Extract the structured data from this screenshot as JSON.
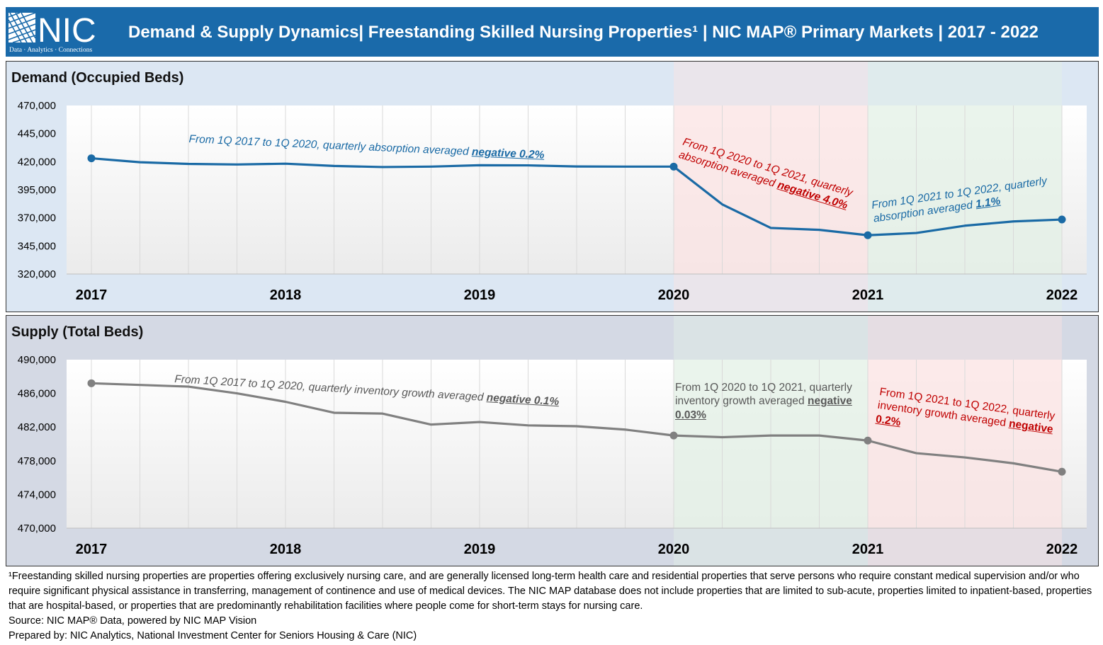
{
  "header": {
    "logo_text": "NIC",
    "logo_tagline": "Data · Analytics · Connections",
    "title": "Demand & Supply Dynamics| Freestanding Skilled Nursing Properties¹ | NIC MAP® Primary Markets | 2017 - 2022"
  },
  "colors": {
    "header_bg": "#1a6aaa",
    "demand_line": "#1a6aa5",
    "supply_line": "#808080",
    "negative_zone": "#fbe3e3",
    "positive_zone": "#e3f0e6"
  },
  "chart_data": [
    {
      "type": "line",
      "title": "Demand (Occupied Beds)",
      "categories": [
        "2017",
        "",
        "",
        "",
        "2018",
        "",
        "",
        "",
        "2019",
        "",
        "",
        "",
        "2020",
        "",
        "",
        "",
        "2021",
        "",
        "",
        "",
        "2022"
      ],
      "year_labels": [
        "2017",
        "2018",
        "2019",
        "2020",
        "2021",
        "2022"
      ],
      "series": [
        {
          "values": [
            423000,
            419500,
            418000,
            417500,
            418200,
            416200,
            415200,
            415600,
            416800,
            416700,
            415700,
            415600,
            415600,
            382000,
            361000,
            359300,
            354500,
            356500,
            363000,
            366800,
            368500
          ]
        }
      ],
      "ylim": [
        320000,
        470000
      ],
      "yticks": [
        "320,000",
        "345,000",
        "370,000",
        "395,000",
        "420,000",
        "445,000",
        "470,000"
      ],
      "marker_indices": [
        0,
        12,
        16,
        20
      ],
      "shaded_regions": [
        {
          "from": 12,
          "to": 16,
          "tone": "negative"
        },
        {
          "from": 16,
          "to": 20,
          "tone": "positive"
        }
      ],
      "annotations": {
        "period1": {
          "text": "From 1Q 2017 to 1Q 2020, quarterly absorption averaged",
          "value": "negative 0.2%"
        },
        "period2": {
          "line1": "From 1Q 2020 to 1Q 2021, quarterly",
          "line2": "absorption averaged",
          "value": "negative 4.0%"
        },
        "period3": {
          "line1": "From 1Q 2021 to 1Q 2022, quarterly",
          "line2": "absorption averaged",
          "value": "1.1%"
        }
      }
    },
    {
      "type": "line",
      "title": "Supply (Total Beds)",
      "categories": [
        "2017",
        "",
        "",
        "",
        "2018",
        "",
        "",
        "",
        "2019",
        "",
        "",
        "",
        "2020",
        "",
        "",
        "",
        "2021",
        "",
        "",
        "",
        "2022"
      ],
      "year_labels": [
        "2017",
        "2018",
        "2019",
        "2020",
        "2021",
        "2022"
      ],
      "series": [
        {
          "values": [
            487200,
            487000,
            486800,
            486000,
            485000,
            483700,
            483600,
            482300,
            482600,
            482200,
            482100,
            481700,
            481000,
            480800,
            481000,
            481000,
            480400,
            478900,
            478400,
            477700,
            476700
          ]
        }
      ],
      "ylim": [
        470000,
        490000
      ],
      "yticks": [
        "470,000",
        "474,000",
        "478,000",
        "482,000",
        "486,000",
        "490,000"
      ],
      "marker_indices": [
        0,
        12,
        16,
        20
      ],
      "shaded_regions": [
        {
          "from": 12,
          "to": 16,
          "tone": "positive"
        },
        {
          "from": 16,
          "to": 20,
          "tone": "negative"
        }
      ],
      "annotations": {
        "period1": {
          "text": "From 1Q 2017 to 1Q 2020, quarterly inventory growth averaged",
          "value": "negative 0.1%"
        },
        "period2": {
          "line1": "From 1Q 2020 to 1Q 2021, quarterly",
          "line2": "inventory growth averaged",
          "value_a": "negative",
          "value_b": "0.03%"
        },
        "period3": {
          "line1": "From 1Q 2021 to 1Q 2022, quarterly",
          "line2": "inventory growth averaged",
          "value_a": "negative",
          "value_b": "0.2%"
        }
      }
    }
  ],
  "footer": {
    "footnote": "¹Freestanding skilled nursing properties are properties offering exclusively nursing care, and are generally licensed long-term health care and residential properties that serve persons who require constant medical supervision and/or who require significant physical assistance in transferring, management of continence and use of medical devices. The NIC MAP database does not include properties that are limited to sub-acute, properties limited to inpatient-based, properties that are hospital-based, or properties that are predominantly rehabilitation facilities where people come for short-term stays for nursing care.",
    "source": "Source: NIC MAP® Data, powered by NIC MAP Vision",
    "prepared": "Prepared by: NIC Analytics, National Investment Center for Seniors Housing & Care (NIC)"
  }
}
